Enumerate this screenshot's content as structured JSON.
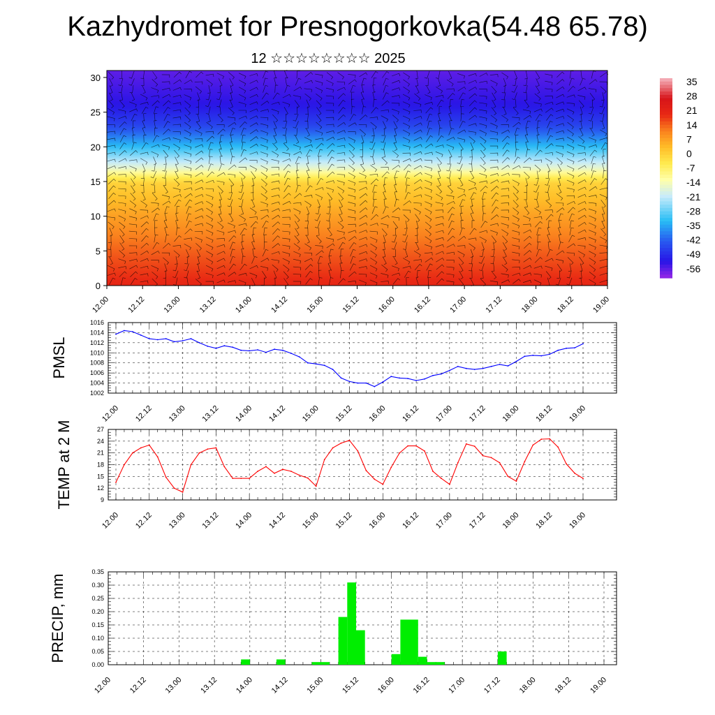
{
  "title": "Kazhydromet for Presnogorkovka(54.48 65.78)",
  "subtitle": "12 ☆☆☆☆☆☆☆☆ 2025",
  "chart_data": [
    {
      "type": "heatmap",
      "description_role": "vertical cross-section of temperature with wind barbs",
      "x_ticks": [
        "12.00",
        "12.12",
        "13.00",
        "13.12",
        "14.00",
        "14.12",
        "15.00",
        "15.12",
        "16.00",
        "16.12",
        "17.00",
        "17.12",
        "18.00",
        "18.12",
        "19.00"
      ],
      "ylim": [
        0,
        31
      ],
      "y_ticks": [
        0,
        5,
        10,
        15,
        20,
        25,
        30
      ],
      "colorbar": {
        "labels": [
          "35",
          "28",
          "21",
          "14",
          "7",
          "0",
          "-7",
          "-14",
          "-21",
          "-28",
          "-35",
          "-42",
          "-49",
          "-56"
        ],
        "range": [
          -60,
          38
        ]
      },
      "temperature_profile": {
        "levels": [
          0,
          5,
          10,
          15,
          17,
          20,
          23,
          26,
          31
        ],
        "values": [
          21,
          15,
          8,
          0,
          -16,
          -32,
          -45,
          -52,
          -56
        ]
      },
      "colors": {
        "warm": "#e8261c",
        "neutral": "#ffff80",
        "cold": "#1c1ce0"
      }
    },
    {
      "type": "line",
      "ylabel": "PMSL",
      "ylim": [
        1002,
        1016
      ],
      "y_ticks": [
        1002,
        1004,
        1006,
        1008,
        1010,
        1012,
        1014,
        1016
      ],
      "x_ticks": [
        "12.00",
        "12.12",
        "13.00",
        "13.12",
        "14.00",
        "14.12",
        "15.00",
        "15.12",
        "16.00",
        "16.12",
        "17.00",
        "17.12",
        "18.00",
        "18.12",
        "19.00"
      ],
      "x_hours": [
        0,
        3,
        6,
        9,
        12,
        15,
        18,
        21,
        24,
        27,
        30,
        33,
        36,
        39,
        42,
        45,
        48,
        51,
        54,
        57,
        60,
        63,
        66,
        69,
        72,
        75,
        78,
        81,
        84,
        87,
        90,
        93,
        96,
        99,
        102,
        105,
        108,
        111,
        114,
        117,
        120,
        123,
        126,
        129,
        132,
        135,
        138,
        141,
        144,
        147,
        150,
        153,
        156,
        159,
        162,
        165,
        168
      ],
      "values": [
        1013.7,
        1014.4,
        1014.2,
        1013.5,
        1012.8,
        1012.6,
        1012.8,
        1012.2,
        1012.4,
        1012.8,
        1012.0,
        1011.3,
        1010.9,
        1011.4,
        1011.1,
        1010.5,
        1010.4,
        1010.6,
        1010.1,
        1010.7,
        1010.5,
        1009.9,
        1009.2,
        1008.0,
        1007.8,
        1007.5,
        1006.7,
        1005.0,
        1004.3,
        1004.0,
        1004.0,
        1003.3,
        1004.2,
        1005.3,
        1005.0,
        1004.9,
        1004.5,
        1004.8,
        1005.5,
        1005.8,
        1006.5,
        1007.3,
        1006.9,
        1006.7,
        1006.9,
        1007.3,
        1007.7,
        1007.4,
        1008.3,
        1009.3,
        1009.5,
        1009.4,
        1009.7,
        1010.5,
        1010.9,
        1011.0,
        1011.8
      ],
      "color": "#0000ff"
    },
    {
      "type": "line",
      "ylabel": "TEMP at 2 M",
      "ylim": [
        9,
        27
      ],
      "y_ticks": [
        9,
        12,
        15,
        18,
        21,
        24,
        27
      ],
      "x_ticks": [
        "12.00",
        "12.12",
        "13.00",
        "13.12",
        "14.00",
        "14.12",
        "15.00",
        "15.12",
        "16.00",
        "16.12",
        "17.00",
        "17.12",
        "18.00",
        "18.12",
        "19.00"
      ],
      "x_hours": [
        0,
        3,
        6,
        9,
        12,
        15,
        18,
        21,
        24,
        27,
        30,
        33,
        36,
        39,
        42,
        45,
        48,
        51,
        54,
        57,
        60,
        63,
        66,
        69,
        72,
        75,
        78,
        81,
        84,
        87,
        90,
        93,
        96,
        99,
        102,
        105,
        108,
        111,
        114,
        117,
        120,
        123,
        126,
        129,
        132,
        135,
        138,
        141,
        144,
        147,
        150,
        153,
        156,
        159,
        162,
        165,
        168
      ],
      "values": [
        13.5,
        18.0,
        21.0,
        22.3,
        23.0,
        20.0,
        14.8,
        12.0,
        11.0,
        18.0,
        21.0,
        22.0,
        22.3,
        17.5,
        14.5,
        14.5,
        14.5,
        16.3,
        17.5,
        15.8,
        16.8,
        16.3,
        15.3,
        14.6,
        12.5,
        19.3,
        22.3,
        23.5,
        24.2,
        21.5,
        16.5,
        14.3,
        13.0,
        17.3,
        21.0,
        22.8,
        22.8,
        21.5,
        16.3,
        14.5,
        13.0,
        18.5,
        23.3,
        22.7,
        20.3,
        19.8,
        18.5,
        15.0,
        13.8,
        18.8,
        23.0,
        24.5,
        24.6,
        22.5,
        18.2,
        15.8,
        14.5
      ],
      "color": "#ff0000"
    },
    {
      "type": "bar",
      "ylabel": "PRECIP, mm",
      "ylim": [
        0,
        0.35
      ],
      "y_ticks": [
        "0.00",
        "0.05",
        "0.10",
        "0.15",
        "0.20",
        "0.25",
        "0.30",
        "0.35"
      ],
      "x_ticks": [
        "12.00",
        "12.12",
        "13.00",
        "13.12",
        "14.00",
        "14.12",
        "15.00",
        "15.12",
        "16.00",
        "16.12",
        "17.00",
        "17.12",
        "18.00",
        "18.12",
        "19.00"
      ],
      "bars": [
        {
          "start_hour": 45,
          "end_hour": 48,
          "value": 0.02
        },
        {
          "start_hour": 57,
          "end_hour": 60,
          "value": 0.02
        },
        {
          "start_hour": 69,
          "end_hour": 75,
          "value": 0.01
        },
        {
          "start_hour": 78,
          "end_hour": 81,
          "value": 0.18
        },
        {
          "start_hour": 81,
          "end_hour": 84,
          "value": 0.31
        },
        {
          "start_hour": 84,
          "end_hour": 87,
          "value": 0.13
        },
        {
          "start_hour": 96,
          "end_hour": 99,
          "value": 0.04
        },
        {
          "start_hour": 99,
          "end_hour": 105,
          "value": 0.17
        },
        {
          "start_hour": 105,
          "end_hour": 108,
          "value": 0.03
        },
        {
          "start_hour": 108,
          "end_hour": 114,
          "value": 0.01
        },
        {
          "start_hour": 132,
          "end_hour": 135,
          "value": 0.05
        }
      ],
      "color": "#00ee00"
    }
  ]
}
